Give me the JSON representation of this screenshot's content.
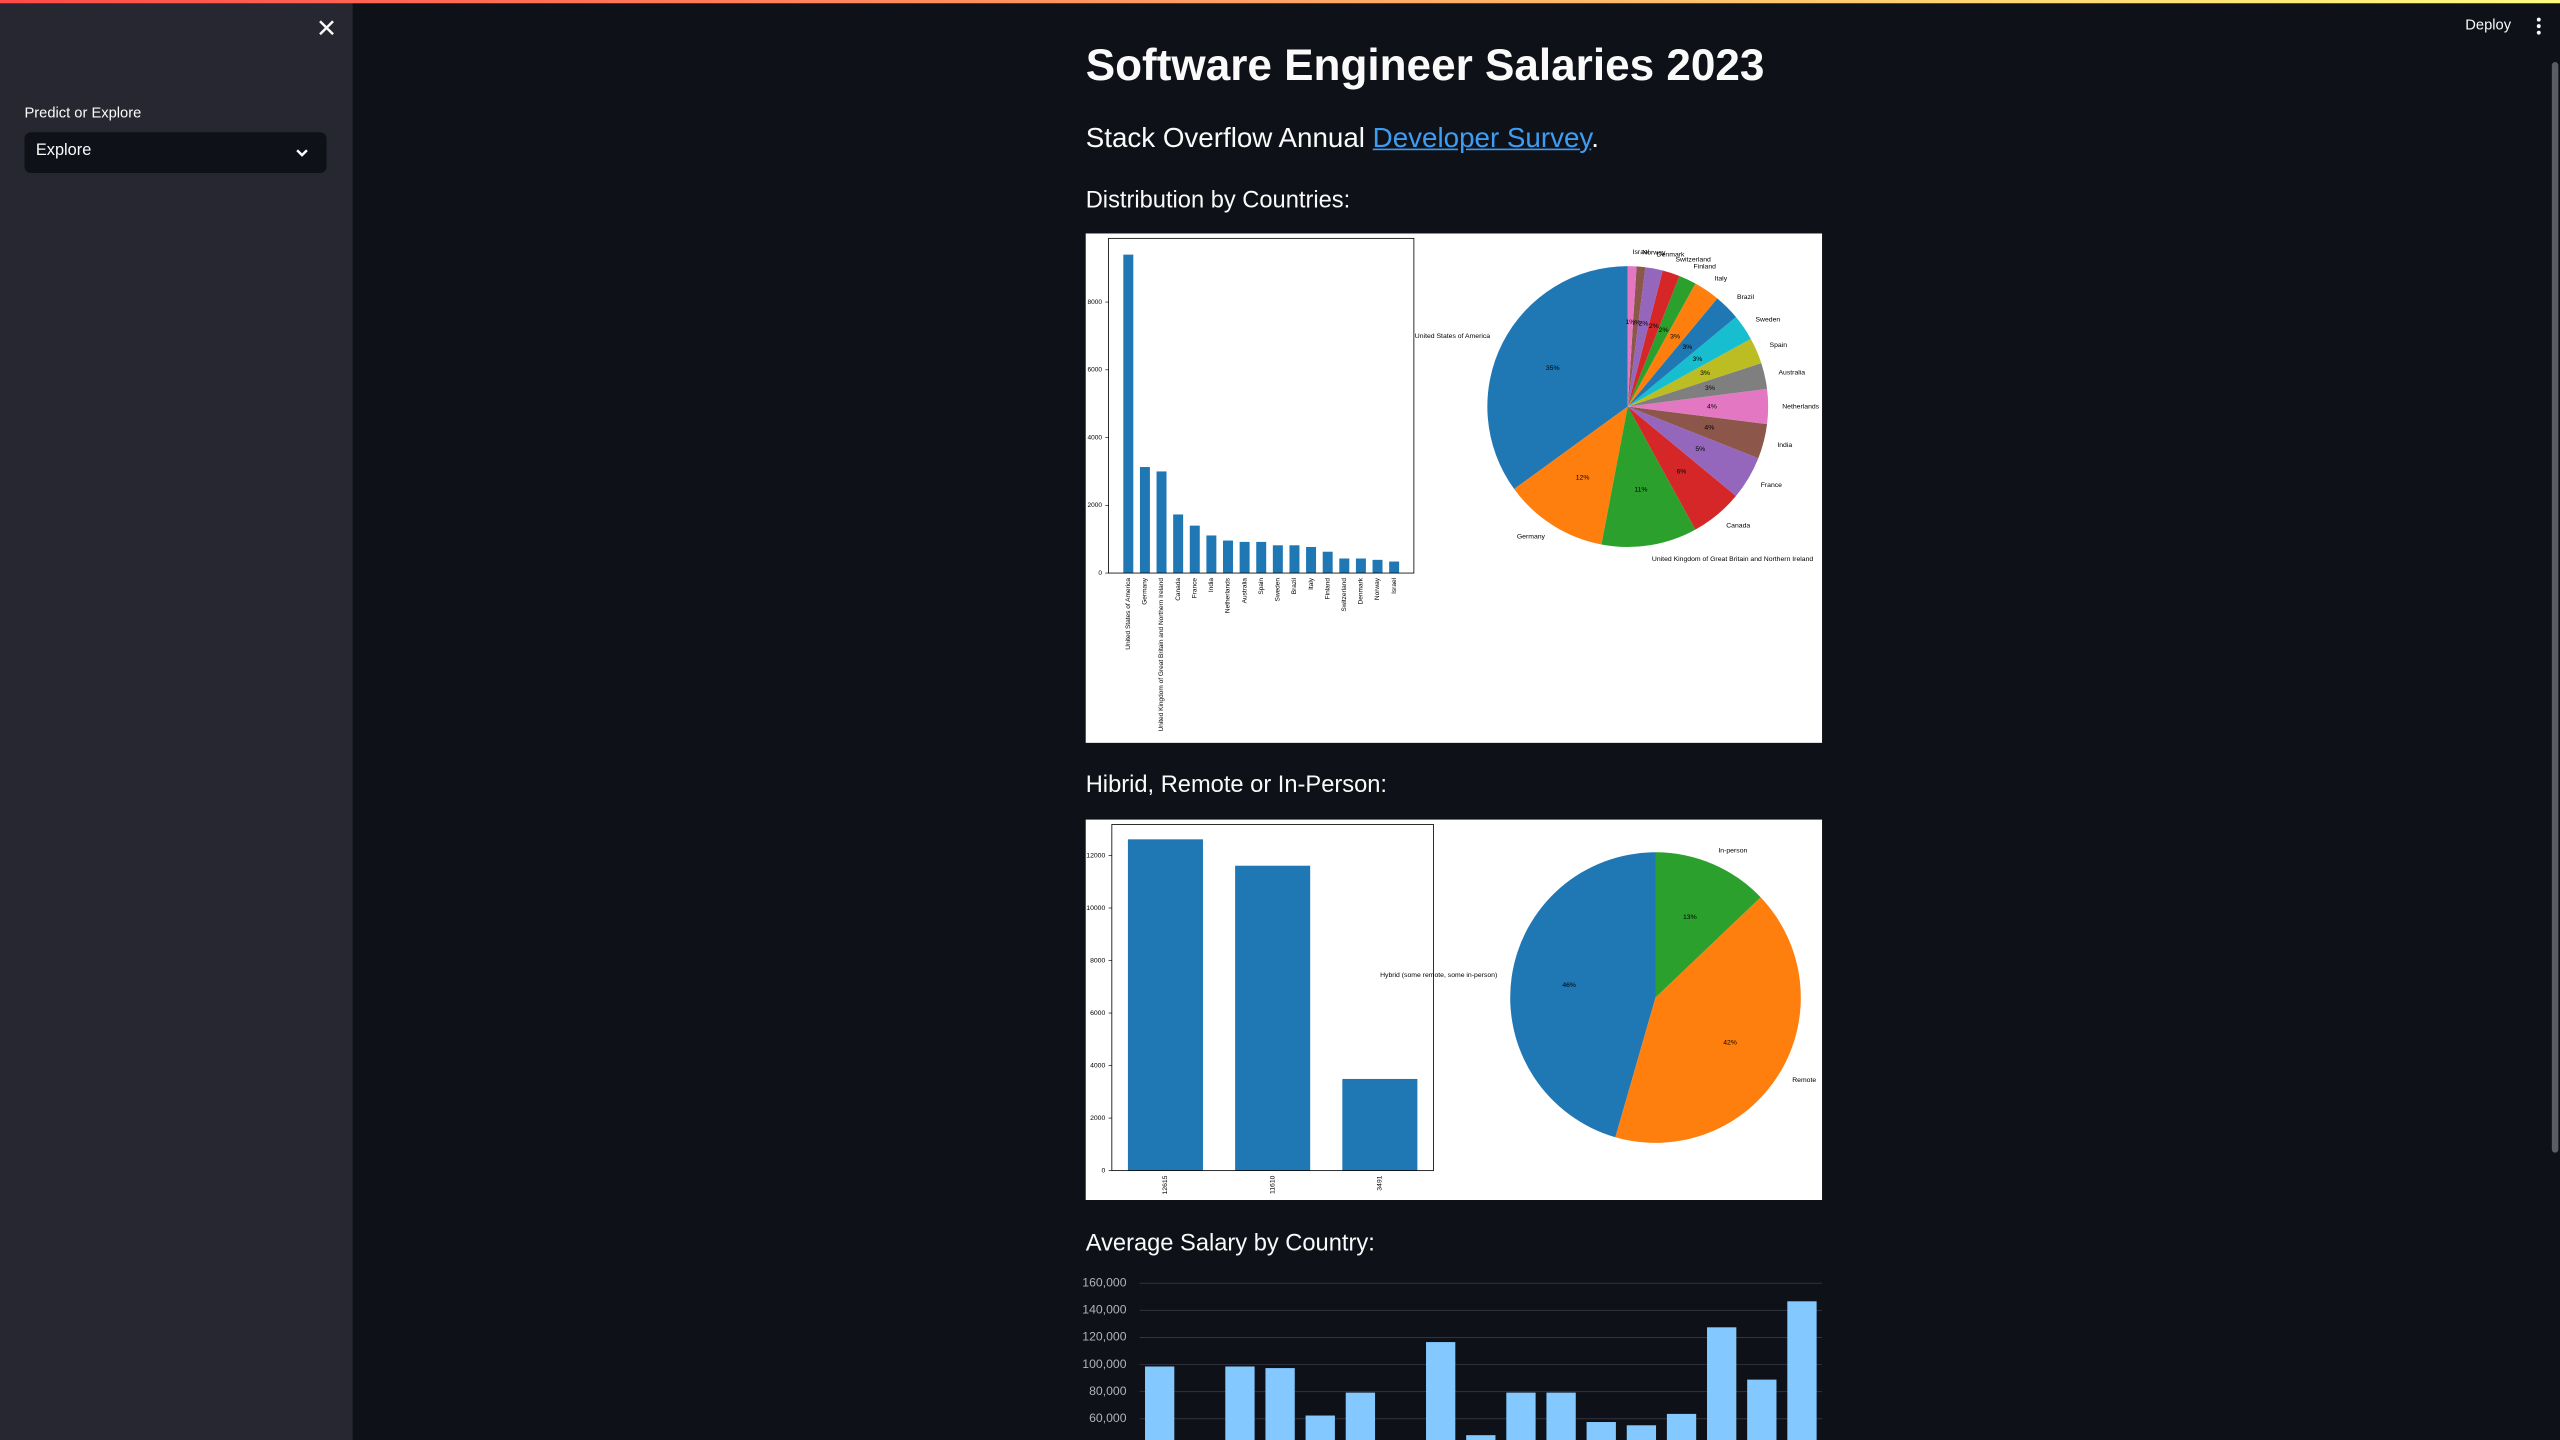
{
  "sidebar": {
    "select_label": "Predict or Explore",
    "select_value": "Explore"
  },
  "toolbar": {
    "deploy": "Deploy"
  },
  "main": {
    "title": "Software Engineer Salaries 2023",
    "subtitle_prefix": "Stack Overflow Annual ",
    "subtitle_link": "Developer Survey",
    "subtitle_suffix": ".",
    "sections": [
      "Distribution by Countries:",
      "Hibrid, Remote or In-Person:",
      "Average Salary by Country:"
    ]
  },
  "chart_data": [
    {
      "type": "bar",
      "categories": [
        "United States of America",
        "Germany",
        "United Kingdom of Great Britain and Northern Ireland",
        "Canada",
        "France",
        "India",
        "Netherlands",
        "Australia",
        "Spain",
        "Sweden",
        "Brazil",
        "Italy",
        "Finland",
        "Switzerland",
        "Denmark",
        "Norway",
        "Israel"
      ],
      "values": [
        9400,
        3130,
        3000,
        1730,
        1400,
        1110,
        960,
        920,
        920,
        820,
        820,
        770,
        630,
        430,
        430,
        390,
        340
      ],
      "color": "#1f77b4",
      "ylim": [
        0,
        9880
      ],
      "yticks": [
        0,
        2000,
        4000,
        6000,
        8000
      ]
    },
    {
      "type": "pie",
      "categories": [
        "United States of America",
        "Germany",
        "United Kingdom of Great Britain and Northern Ireland",
        "Canada",
        "France",
        "India",
        "Netherlands",
        "Australia",
        "Spain",
        "Sweden",
        "Brazil",
        "Italy",
        "Finland",
        "Switzerland",
        "Denmark",
        "Norway",
        "Israel"
      ],
      "values": [
        35,
        12,
        11,
        6,
        5,
        4,
        4,
        3,
        3,
        3,
        3,
        3,
        2,
        2,
        2,
        1,
        1
      ],
      "value_labels": [
        "35%",
        "12%",
        "11%",
        "6%",
        "5%",
        "4%",
        "4%",
        "3%",
        "3%",
        "3%",
        "3%",
        "3%",
        "2%",
        "2%",
        "2%",
        "1%",
        "1%"
      ],
      "colors": [
        "#1f77b4",
        "#ff7f0e",
        "#2ca02c",
        "#d62728",
        "#9467bd",
        "#8c564b",
        "#e377c2",
        "#7f7f7f",
        "#bcbd22",
        "#17becf",
        "#1f77b4",
        "#ff7f0e",
        "#2ca02c",
        "#d62728",
        "#9467bd",
        "#8c564b",
        "#e377c2"
      ]
    },
    {
      "type": "bar",
      "categories": [
        "12615",
        "11610",
        "3491"
      ],
      "values": [
        12615,
        11610,
        3491
      ],
      "color": "#1f77b4",
      "ylim": [
        0,
        13180
      ],
      "yticks": [
        0,
        2000,
        4000,
        6000,
        8000,
        10000,
        12000
      ]
    },
    {
      "type": "pie",
      "categories": [
        "Hybrid (some remote, some in-person)",
        "Remote",
        "In-person"
      ],
      "values": [
        46,
        42,
        13
      ],
      "value_labels": [
        "46%",
        "42%",
        "13%"
      ],
      "colors": [
        "#1f77b4",
        "#ff7f0e",
        "#2ca02c"
      ]
    },
    {
      "type": "bar",
      "categories": [
        null,
        null,
        null,
        null,
        null,
        null,
        null,
        null,
        null,
        null,
        null,
        null,
        null,
        null,
        null,
        null,
        null
      ],
      "values": [
        98600,
        null,
        98600,
        97400,
        62400,
        79300,
        null,
        116600,
        47900,
        79300,
        79300,
        57600,
        55200,
        63600,
        127500,
        88900,
        146700
      ],
      "color": "#83c9ff",
      "grid": true,
      "ylim": [
        0,
        160000
      ],
      "yticks": [
        {
          "value": 60000,
          "label": "60,000"
        },
        {
          "value": 80000,
          "label": "80,000"
        },
        {
          "value": 100000,
          "label": "100,000"
        },
        {
          "value": 120000,
          "label": "120,000"
        },
        {
          "value": 140000,
          "label": "140,000"
        },
        {
          "value": 160000,
          "label": "160,000"
        }
      ]
    }
  ]
}
